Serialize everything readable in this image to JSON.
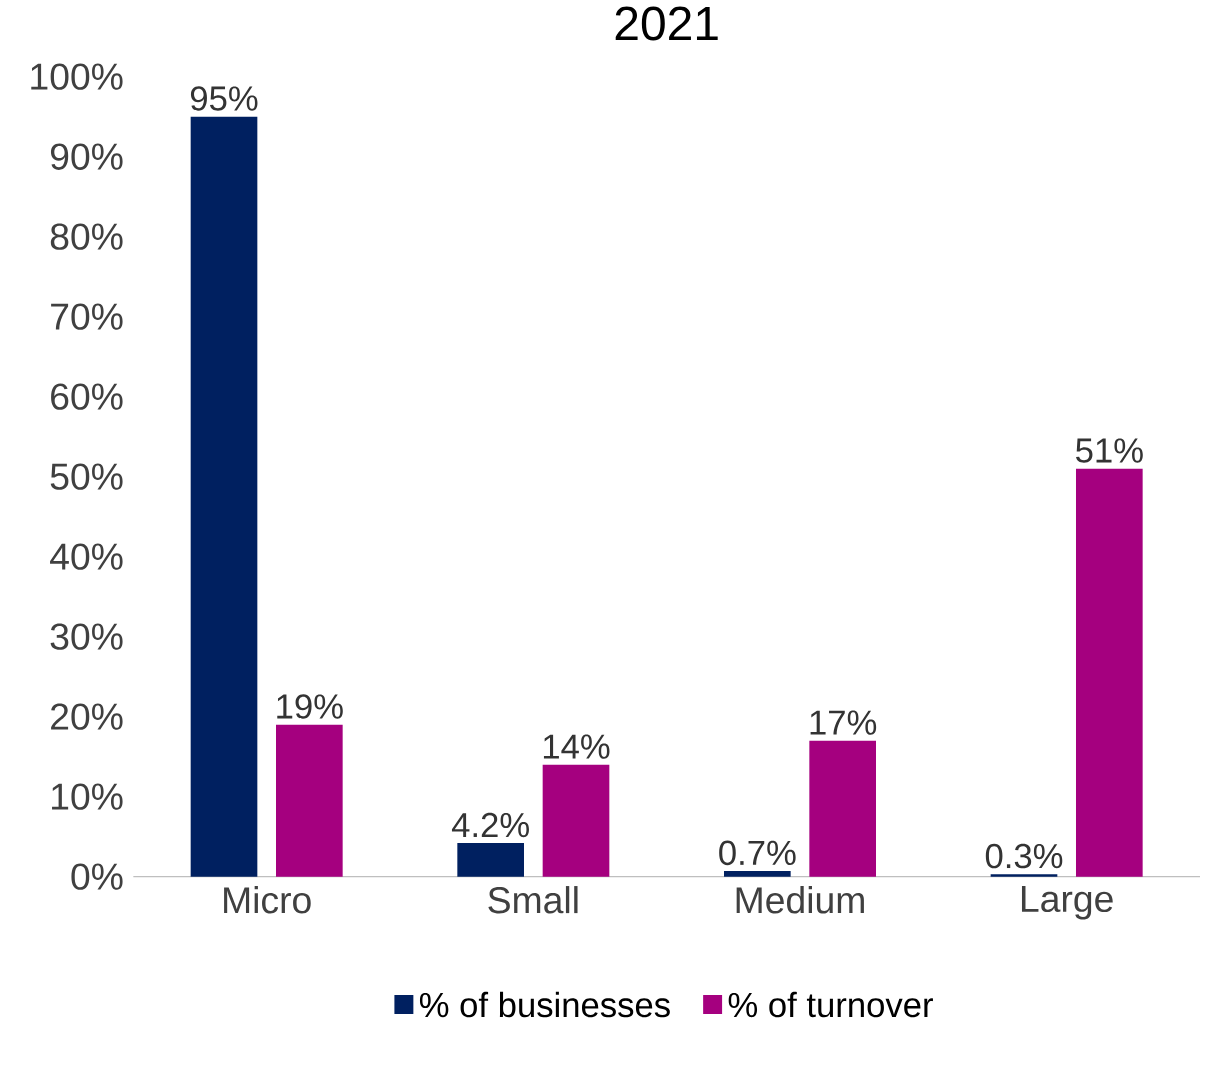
{
  "chart_data": {
    "type": "bar",
    "title": "2021",
    "categories": [
      "Micro",
      "Small",
      "Medium",
      "Large"
    ],
    "series": [
      {
        "name": "% of businesses",
        "color": "#002060",
        "values": [
          95,
          4.2,
          0.7,
          0.3
        ],
        "value_labels": [
          "95%",
          "4.2%",
          "0.7%",
          "0.3%"
        ]
      },
      {
        "name": "% of turnover",
        "color": "#a5007f",
        "values": [
          19,
          14,
          17,
          51
        ],
        "value_labels": [
          "19%",
          "14%",
          "17%",
          "51%"
        ]
      }
    ],
    "ylim": [
      0,
      100
    ],
    "yticks": [
      {
        "value": 0,
        "label": "0%"
      },
      {
        "value": 10,
        "label": "10%"
      },
      {
        "value": 20,
        "label": "20%"
      },
      {
        "value": 30,
        "label": "30%"
      },
      {
        "value": 40,
        "label": "40%"
      },
      {
        "value": 50,
        "label": "50%"
      },
      {
        "value": 60,
        "label": "60%"
      },
      {
        "value": 70,
        "label": "70%"
      },
      {
        "value": 80,
        "label": "80%"
      },
      {
        "value": 90,
        "label": "90%"
      },
      {
        "value": 100,
        "label": "100%"
      }
    ],
    "grid": false,
    "legend": "bottom"
  }
}
